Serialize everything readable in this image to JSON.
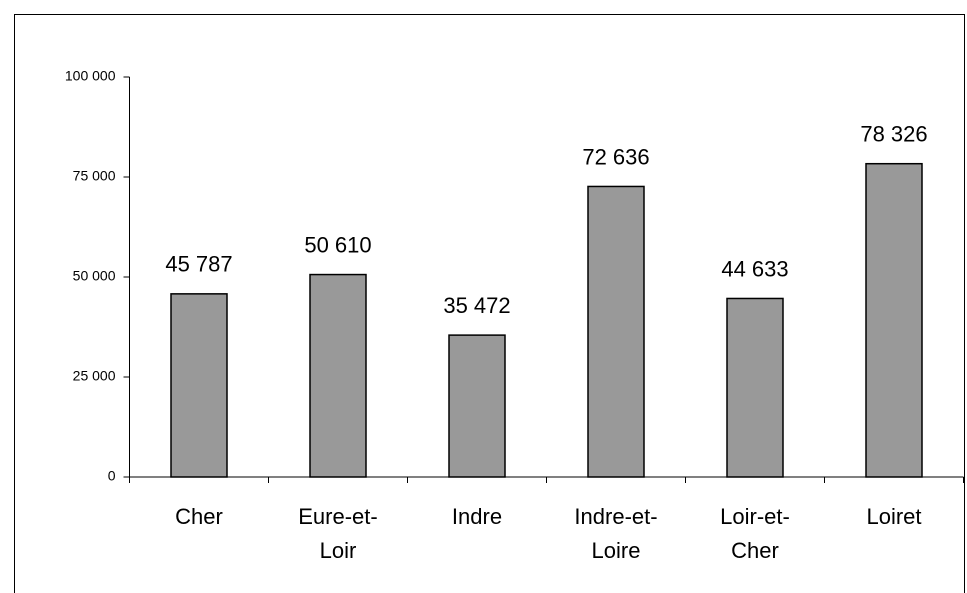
{
  "chart_data": {
    "type": "bar",
    "categories": [
      "Cher",
      "Eure-et-Loir",
      "Indre",
      "Indre-et-Loire",
      "Loir-et-Cher",
      "Loiret"
    ],
    "values": [
      45787,
      50610,
      35472,
      72636,
      44633,
      78326
    ],
    "value_labels": [
      "45 787",
      "50 610",
      "35 472",
      "72 636",
      "44 633",
      "78 326"
    ],
    "color": "#999999",
    "ylim": [
      0,
      100000
    ],
    "yticks": [
      0,
      {
        "value": 25000,
        "label": "25 000"
      },
      {
        "value": 50000,
        "label": "50 000"
      },
      {
        "value": 75000,
        "label": "75 000"
      },
      {
        "value": 100000,
        "label": "100 000"
      }
    ],
    "grid": false
  }
}
